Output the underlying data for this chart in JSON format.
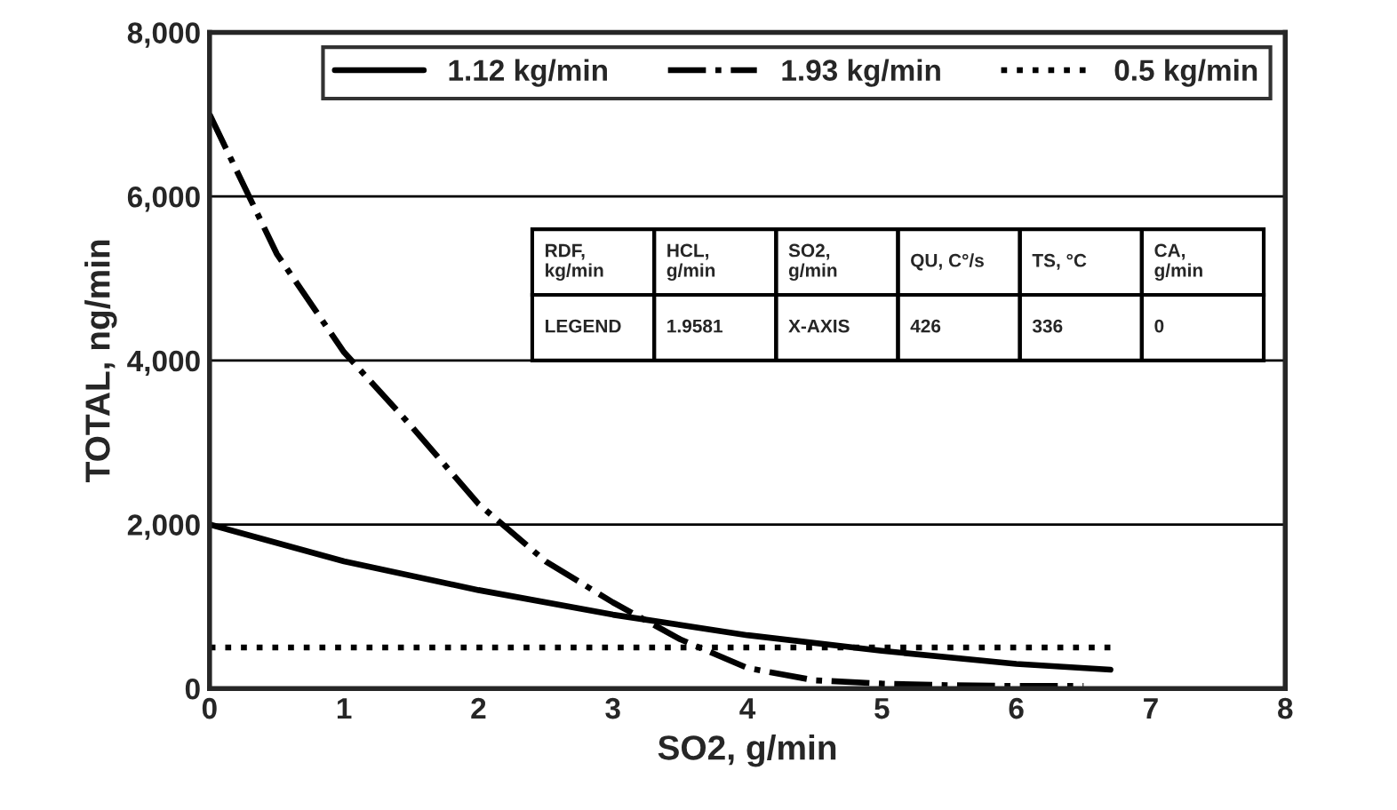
{
  "chart_data": {
    "type": "line",
    "xlabel": "SO2, g/min",
    "ylabel": "TOTAL, ng/min",
    "xlim": [
      0,
      8
    ],
    "xticks": [
      0,
      1,
      2,
      3,
      4,
      5,
      6,
      7,
      8
    ],
    "ylim": [
      0,
      8000
    ],
    "yticks": [
      {
        "value": 0,
        "label": "0"
      },
      {
        "value": 2000,
        "label": "2,000"
      },
      {
        "value": 4000,
        "label": "4,000"
      },
      {
        "value": 6000,
        "label": "6,000"
      },
      {
        "value": 8000,
        "label": "8,000"
      }
    ],
    "grid": "y",
    "legend": "top right",
    "marker": "none",
    "series": [
      {
        "name": "1.12 kg/min",
        "color": "#000000",
        "line_style": "solid",
        "x": [
          0,
          1,
          2,
          3,
          4,
          5,
          6,
          6.7
        ],
        "values": [
          2000,
          1550,
          1200,
          900,
          650,
          460,
          300,
          230
        ]
      },
      {
        "name": "1.93 kg/min",
        "color": "#000000",
        "line_style": "dashdot",
        "x": [
          0,
          0.5,
          1,
          1.5,
          2,
          2.5,
          3,
          3.5,
          4,
          4.5,
          5,
          5.5,
          6,
          6.5
        ],
        "values": [
          7000,
          5300,
          4100,
          3200,
          2250,
          1550,
          1050,
          600,
          250,
          100,
          60,
          40,
          30,
          30
        ]
      },
      {
        "name": "0.5 kg/min",
        "color": "#000000",
        "line_style": "dotted",
        "x": [
          0,
          1,
          2,
          3,
          4,
          5,
          6,
          6.7
        ],
        "values": [
          500,
          500,
          500,
          500,
          500,
          500,
          500,
          500
        ]
      }
    ],
    "annotations": [
      "RDF,\nkg/min",
      "HCL,\ng/min",
      "SO2,\ng/min",
      "QU, C°/s",
      "TS, °C",
      "CA,\ng/min",
      "LEGEND",
      "1.9581",
      "X-AXIS",
      "426",
      "336",
      "0"
    ]
  }
}
